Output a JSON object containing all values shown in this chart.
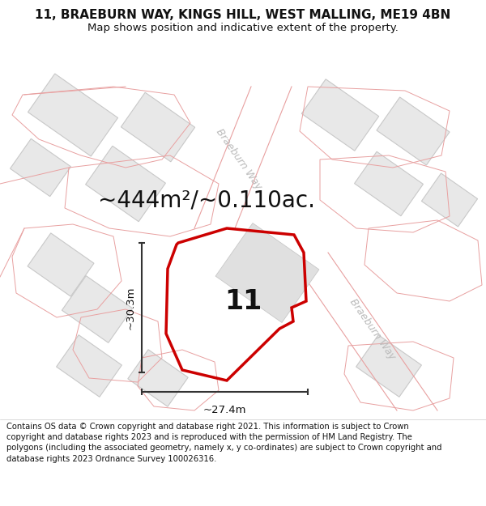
{
  "title_line1": "11, BRAEBURN WAY, KINGS HILL, WEST MALLING, ME19 4BN",
  "title_line2": "Map shows position and indicative extent of the property.",
  "area_label": "~444m²/~0.110ac.",
  "property_number": "11",
  "dim_vertical": "~30.3m",
  "dim_horizontal": "~27.4m",
  "road_label_top": "Braeburn Way",
  "road_label_right": "Braeburn Way",
  "footer_text": "Contains OS data © Crown copyright and database right 2021. This information is subject to Crown copyright and database rights 2023 and is reproduced with the permission of HM Land Registry. The polygons (including the associated geometry, namely x, y co-ordinates) are subject to Crown copyright and database rights 2023 Ordnance Survey 100026316.",
  "map_bg": "#ffffff",
  "building_fill": "#e8e8e8",
  "building_outline": "#c8c8c8",
  "parcel_outline": "#e8a0a0",
  "property_fill": "#f0f0f0",
  "property_outline": "#cc0000",
  "dim_color": "#444444",
  "title_fontsize": 11,
  "subtitle_fontsize": 9.5,
  "area_fontsize": 20,
  "number_fontsize": 24,
  "footer_fontsize": 7.2,
  "road_label_color": "#bbbbbb",
  "road_label_fontsize": 9
}
